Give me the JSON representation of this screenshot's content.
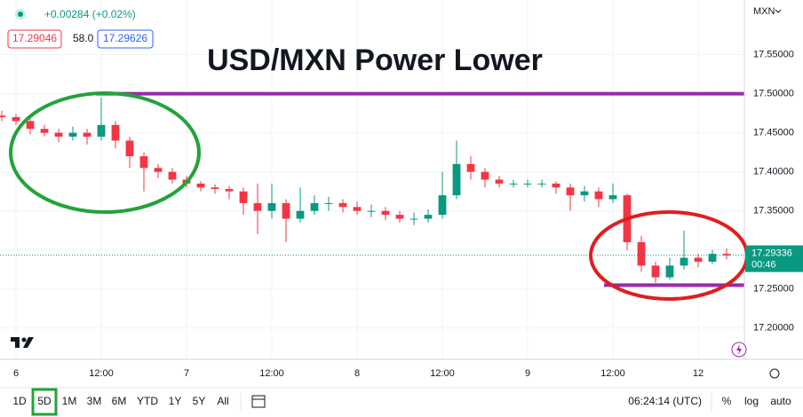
{
  "chart_data": {
    "type": "candlestick",
    "title": "USD/MXN Power Lower",
    "currency": "MXN",
    "change_label": "+0.00284 (+0.02%)",
    "bid": "17.29046",
    "spread": "58.0",
    "ask": "17.29626",
    "last_price": 17.29336,
    "countdown": "00:46",
    "up_color": "#089981",
    "down_color": "#f23645",
    "x": [
      -2,
      0,
      2,
      4,
      6,
      8,
      10,
      12,
      14,
      16,
      18,
      20,
      22,
      24,
      26,
      28,
      30,
      32,
      34,
      36,
      38,
      40,
      42,
      44,
      46,
      48,
      50,
      52,
      54,
      56,
      58,
      60,
      62,
      64,
      66,
      68,
      70,
      72,
      74,
      76,
      78,
      80,
      82,
      84,
      86,
      88,
      90,
      92,
      94,
      96,
      98,
      100
    ],
    "open": [
      17.472,
      17.47,
      17.465,
      17.455,
      17.45,
      17.445,
      17.45,
      17.445,
      17.46,
      17.44,
      17.42,
      17.405,
      17.4,
      17.39,
      17.385,
      17.38,
      17.378,
      17.375,
      17.36,
      17.35,
      17.36,
      17.34,
      17.35,
      17.36,
      17.36,
      17.355,
      17.35,
      17.35,
      17.345,
      17.34,
      17.34,
      17.345,
      17.37,
      17.41,
      17.4,
      17.39,
      17.385,
      17.385,
      17.385,
      17.385,
      17.38,
      17.37,
      17.375,
      17.365,
      17.37,
      17.31,
      17.28,
      17.265,
      17.28,
      17.29,
      17.285,
      17.295
    ],
    "high": [
      17.478,
      17.474,
      17.468,
      17.46,
      17.455,
      17.458,
      17.455,
      17.495,
      17.465,
      17.445,
      17.425,
      17.41,
      17.405,
      17.395,
      17.388,
      17.384,
      17.382,
      17.38,
      17.385,
      17.385,
      17.365,
      17.38,
      17.37,
      17.368,
      17.365,
      17.362,
      17.358,
      17.355,
      17.35,
      17.348,
      17.352,
      17.4,
      17.44,
      17.42,
      17.405,
      17.395,
      17.39,
      17.39,
      17.39,
      17.388,
      17.385,
      17.382,
      17.38,
      17.385,
      17.372,
      17.318,
      17.285,
      17.29,
      17.325,
      17.295,
      17.3,
      17.302
    ],
    "low": [
      17.465,
      17.46,
      17.448,
      17.445,
      17.438,
      17.44,
      17.435,
      17.44,
      17.43,
      17.405,
      17.375,
      17.392,
      17.385,
      17.38,
      17.375,
      17.372,
      17.365,
      17.345,
      17.32,
      17.34,
      17.31,
      17.335,
      17.345,
      17.35,
      17.348,
      17.345,
      17.342,
      17.338,
      17.335,
      17.332,
      17.335,
      17.34,
      17.365,
      17.39,
      17.38,
      17.38,
      17.38,
      17.38,
      17.38,
      17.372,
      17.35,
      17.362,
      17.355,
      17.36,
      17.3,
      17.272,
      17.258,
      17.262,
      17.275,
      17.278,
      17.282,
      17.288
    ],
    "close": [
      17.47,
      17.465,
      17.455,
      17.45,
      17.445,
      17.45,
      17.445,
      17.46,
      17.44,
      17.42,
      17.405,
      17.4,
      17.39,
      17.385,
      17.38,
      17.378,
      17.375,
      17.36,
      17.35,
      17.36,
      17.34,
      17.35,
      17.36,
      17.36,
      17.355,
      17.35,
      17.35,
      17.345,
      17.34,
      17.34,
      17.345,
      17.37,
      17.41,
      17.4,
      17.39,
      17.385,
      17.385,
      17.385,
      17.385,
      17.38,
      17.37,
      17.375,
      17.365,
      17.37,
      17.31,
      17.28,
      17.265,
      17.28,
      17.29,
      17.285,
      17.295,
      17.293
    ],
    "xlim": [
      -2.25,
      102.5
    ],
    "xticks": [
      {
        "value": 0,
        "label": "6"
      },
      {
        "value": 12,
        "label": "12:00"
      },
      {
        "value": 24,
        "label": "7"
      },
      {
        "value": 36,
        "label": "12:00"
      },
      {
        "value": 48,
        "label": "8"
      },
      {
        "value": 60,
        "label": "12:00"
      },
      {
        "value": 72,
        "label": "9"
      },
      {
        "value": 84,
        "label": "12:00"
      },
      {
        "value": 96,
        "label": "12"
      }
    ],
    "ylim": [
      17.16,
      17.62
    ],
    "yticks": [
      {
        "value": 17.2,
        "label": "17.20000"
      },
      {
        "value": 17.25,
        "label": "17.25000"
      },
      {
        "value": 17.3,
        "label": "17.30000"
      },
      {
        "value": 17.35,
        "label": "17.35000"
      },
      {
        "value": 17.4,
        "label": "17.40000"
      },
      {
        "value": 17.45,
        "label": "17.45000"
      },
      {
        "value": 17.5,
        "label": "17.50000"
      },
      {
        "value": 17.55,
        "label": "17.55000"
      }
    ],
    "grid": true,
    "hlines": [
      {
        "value": 17.5,
        "x_start": 11.25,
        "color": "#9c27b0"
      },
      {
        "value": 17.255,
        "x_start": 82.75,
        "color": "#9c27b0"
      }
    ]
  },
  "toolbar": {
    "ranges": [
      "1D",
      "5D",
      "1M",
      "3M",
      "6M",
      "YTD",
      "1Y",
      "5Y",
      "All"
    ],
    "active": 1,
    "time": "06:24:14 (UTC)",
    "options": [
      "%",
      "log",
      "auto"
    ]
  }
}
